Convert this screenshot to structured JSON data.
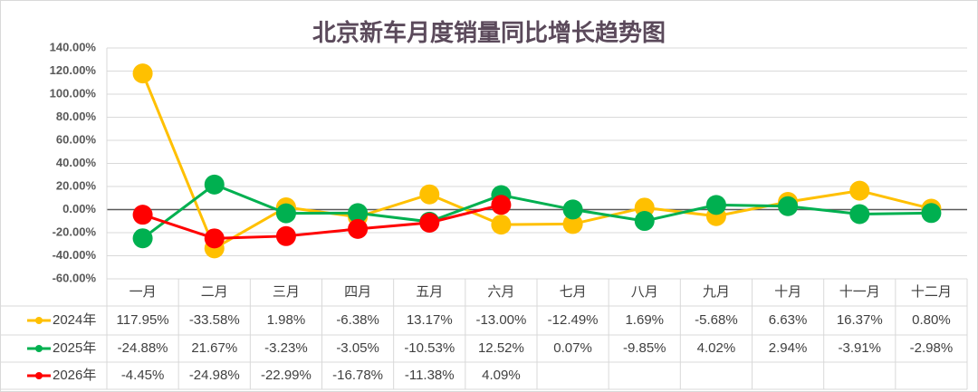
{
  "chart_data": {
    "type": "line",
    "title": "北京新车月度销量同比增长趋势图",
    "categories": [
      "一月",
      "二月",
      "三月",
      "四月",
      "五月",
      "六月",
      "七月",
      "八月",
      "九月",
      "十月",
      "十一月",
      "十二月"
    ],
    "series": [
      {
        "name": "2024年",
        "color": "#ffc000",
        "values": [
          117.95,
          -33.58,
          1.98,
          -6.38,
          13.17,
          -13.0,
          -12.49,
          1.69,
          -5.68,
          6.63,
          16.37,
          0.8
        ],
        "value_labels": [
          "117.95%",
          "-33.58%",
          "1.98%",
          "-6.38%",
          "13.17%",
          "-13.00%",
          "-12.49%",
          "1.69%",
          "-5.68%",
          "6.63%",
          "16.37%",
          "0.80%"
        ]
      },
      {
        "name": "2025年",
        "color": "#00b050",
        "values": [
          -24.88,
          21.67,
          -3.23,
          -3.05,
          -10.53,
          12.52,
          0.07,
          -9.85,
          4.02,
          2.94,
          -3.91,
          -2.98
        ],
        "value_labels": [
          "-24.88%",
          "21.67%",
          "-3.23%",
          "-3.05%",
          "-10.53%",
          "12.52%",
          "0.07%",
          "-9.85%",
          "4.02%",
          "2.94%",
          "-3.91%",
          "-2.98%"
        ]
      },
      {
        "name": "2026年",
        "color": "#ff0000",
        "values": [
          -4.45,
          -24.98,
          -22.99,
          -16.78,
          -11.38,
          4.09,
          null,
          null,
          null,
          null,
          null,
          null
        ],
        "value_labels": [
          "-4.45%",
          "-24.98%",
          "-22.99%",
          "-16.78%",
          "-11.38%",
          "4.09%",
          null,
          null,
          null,
          null,
          null,
          null
        ]
      }
    ],
    "ylim": [
      -60,
      140
    ],
    "yticks": [
      {
        "value": -60,
        "label": "-60.00%"
      },
      {
        "value": -40,
        "label": "-40.00%"
      },
      {
        "value": -20,
        "label": "-20.00%"
      },
      {
        "value": 0,
        "label": "0.00%"
      },
      {
        "value": 20,
        "label": "20.00%"
      },
      {
        "value": 40,
        "label": "40.00%"
      },
      {
        "value": 60,
        "label": "60.00%"
      },
      {
        "value": 80,
        "label": "80.00%"
      },
      {
        "value": 100,
        "label": "100.00%"
      },
      {
        "value": 120,
        "label": "120.00%"
      },
      {
        "value": 140,
        "label": "140.00%"
      }
    ],
    "grid": true
  }
}
